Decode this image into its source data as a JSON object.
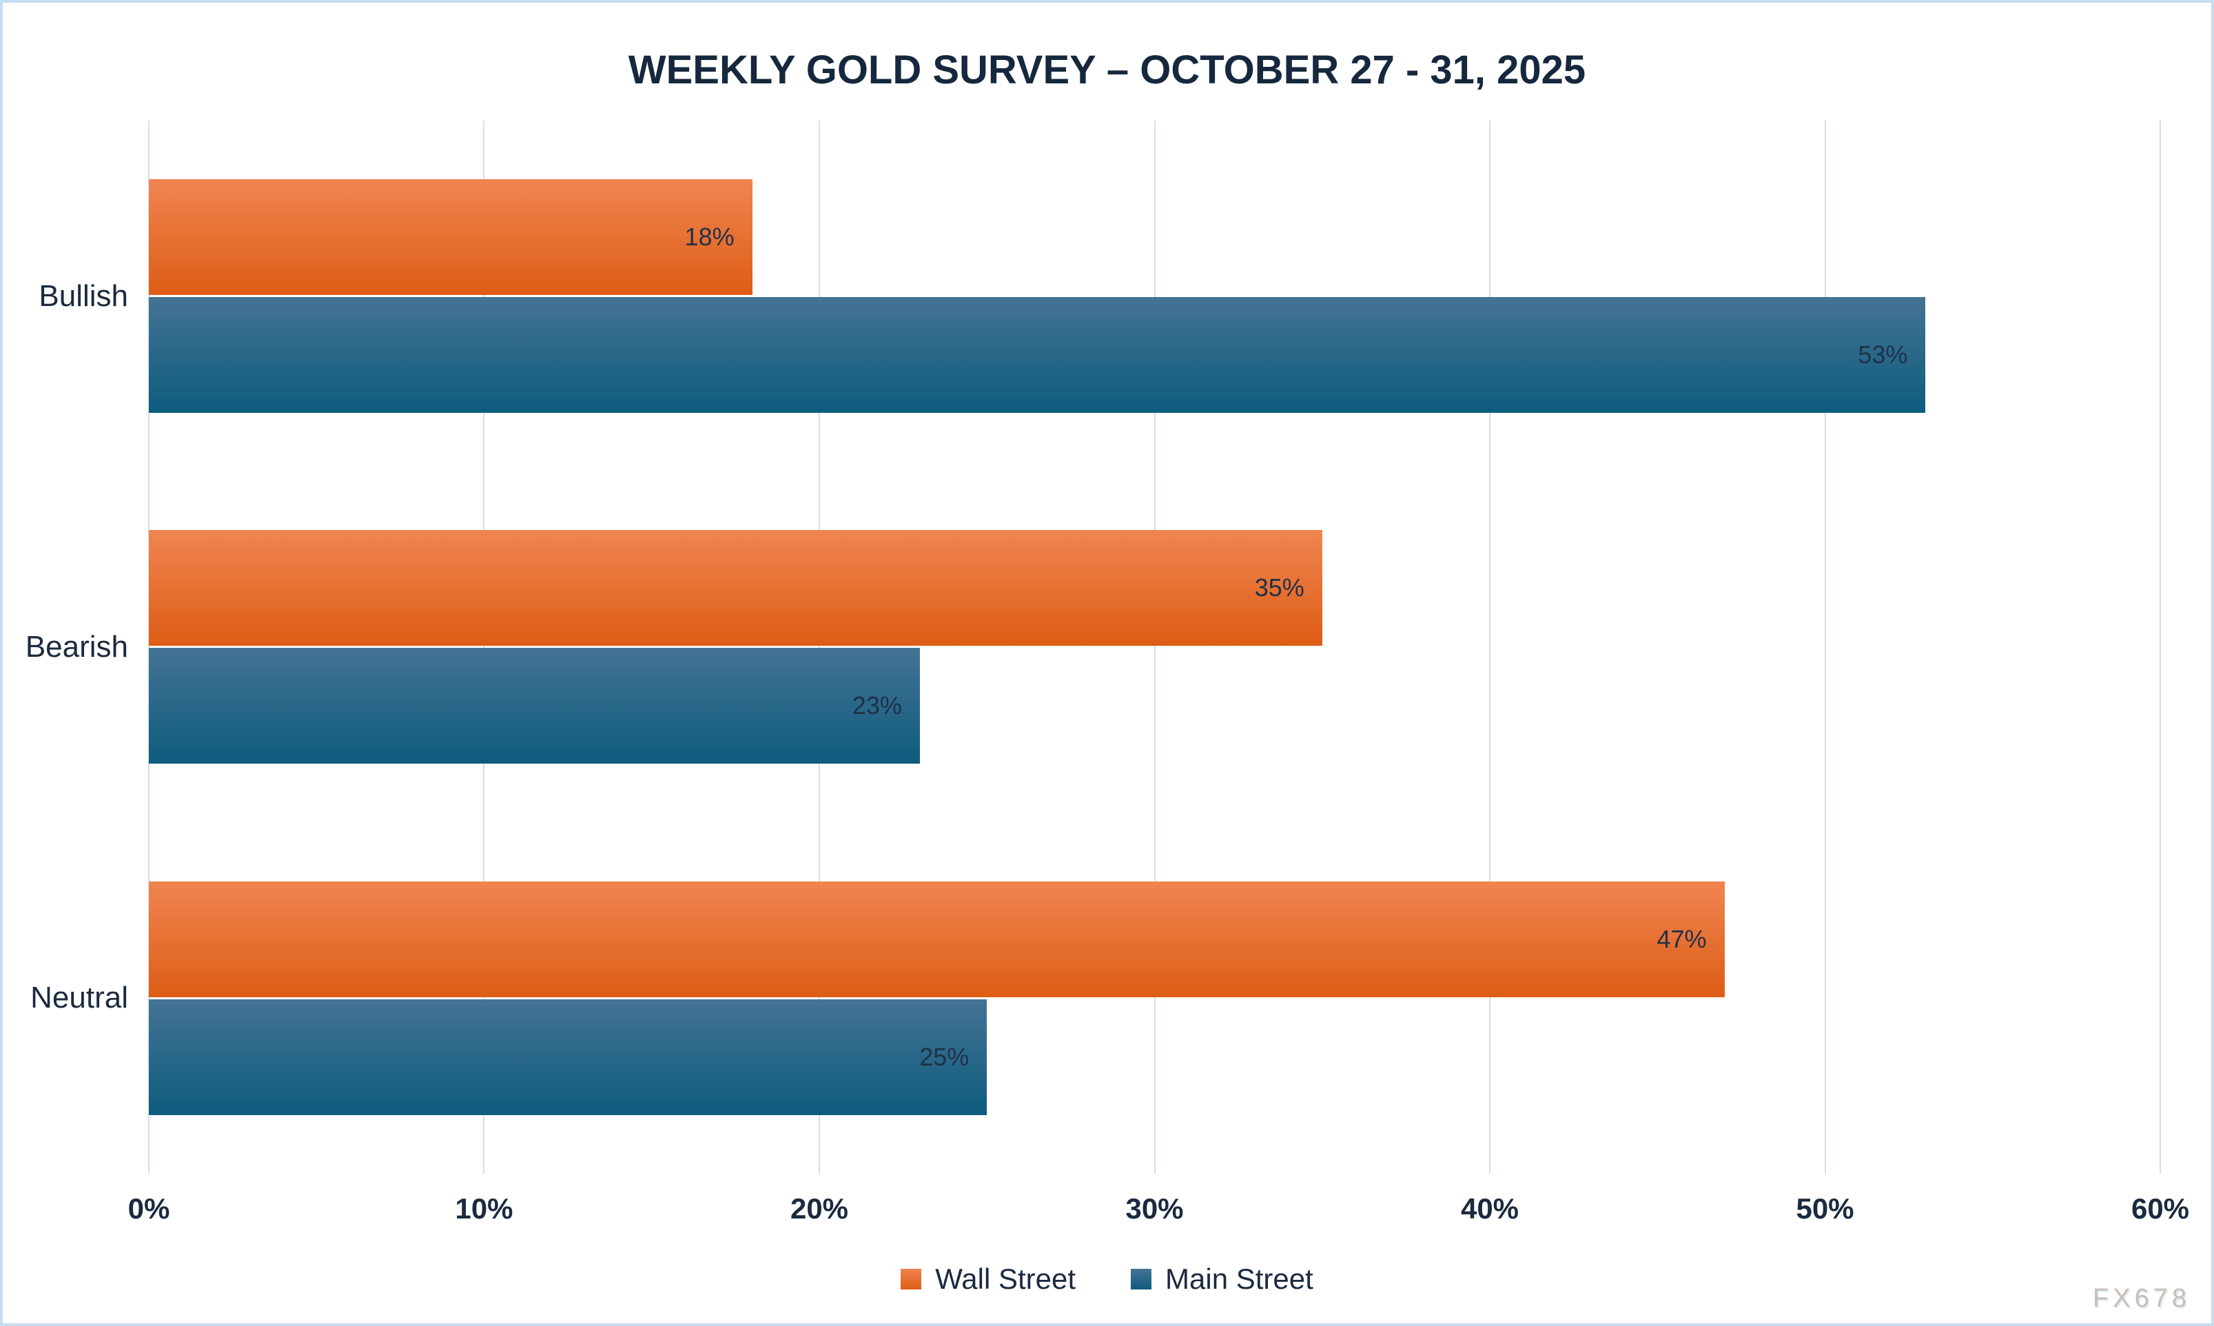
{
  "title": "WEEKLY GOLD SURVEY – OCTOBER 27 - 31, 2025",
  "watermark": "FX678",
  "chart_data": {
    "type": "bar",
    "orientation": "horizontal",
    "title": "WEEKLY GOLD SURVEY – OCTOBER 27 - 31, 2025",
    "categories": [
      "Bullish",
      "Bearish",
      "Neutral"
    ],
    "series": [
      {
        "name": "Wall Street",
        "values": [
          18,
          35,
          47
        ],
        "color_top": "#F08551",
        "color_bottom": "#DD5D15"
      },
      {
        "name": "Main Street",
        "values": [
          53,
          23,
          25
        ],
        "color_top": "#457394",
        "color_bottom": "#0D5C7E"
      }
    ],
    "value_suffix": "%",
    "xlim": [
      0,
      60
    ],
    "x_ticks": [
      "0%",
      "10%",
      "20%",
      "30%",
      "40%",
      "50%",
      "60%"
    ],
    "x_tick_values": [
      0,
      10,
      20,
      30,
      40,
      50,
      60
    ],
    "grid": true,
    "grid_direction": "vertical",
    "legend_position": "bottom",
    "data_labels": "inside-end"
  },
  "colors": {
    "text": "#1B2A3E",
    "title_text": "#16283D",
    "gridline": "#CFE0EF",
    "frame_border": "#C6DCF2",
    "watermark": "#C9BEB3",
    "background": "#FFFFFF"
  }
}
